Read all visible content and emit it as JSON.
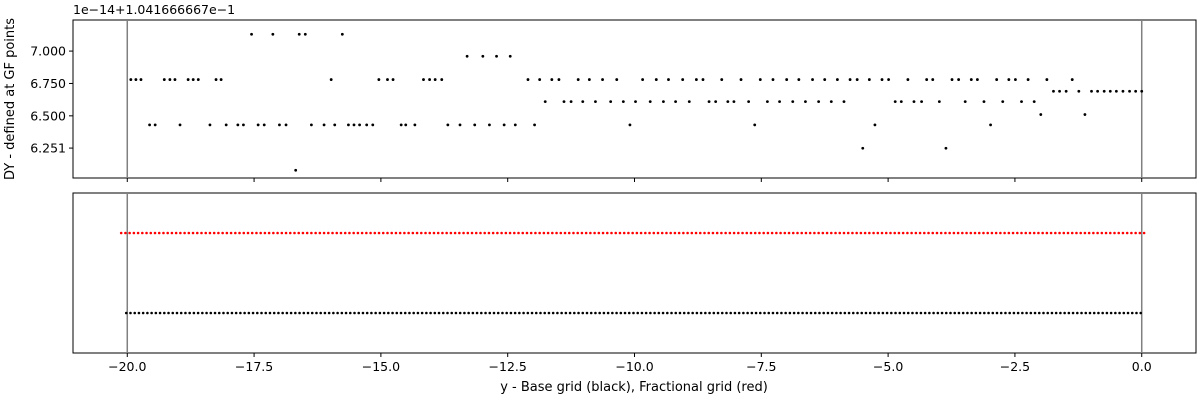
{
  "chart_data": [
    {
      "type": "scatter",
      "ylabel": "DY - defined at GF points",
      "offset_label": "1e−14+1.041666667e−1",
      "x_range": [
        -21.07,
        1.07
      ],
      "y_range": [
        6.02,
        7.24
      ],
      "y_ticks": [
        {
          "value": 7.0,
          "label": "7.000"
        },
        {
          "value": 6.75,
          "label": "6.750"
        },
        {
          "value": 6.5,
          "label": "6.500"
        },
        {
          "value": 6.251,
          "label": "6.251"
        }
      ],
      "vlines": [
        -20.0,
        0.0
      ],
      "line_color": "#808080",
      "point_color": "#000000",
      "series": [
        {
          "points": [
            [
              -19.93,
              6.78
            ],
            [
              -19.83,
              6.78
            ],
            [
              -19.73,
              6.78
            ],
            [
              -19.56,
              6.43
            ],
            [
              -19.45,
              6.43
            ],
            [
              -19.27,
              6.78
            ],
            [
              -19.16,
              6.78
            ],
            [
              -19.06,
              6.78
            ],
            [
              -18.96,
              6.43
            ],
            [
              -18.8,
              6.78
            ],
            [
              -18.7,
              6.78
            ],
            [
              -18.6,
              6.78
            ],
            [
              -18.37,
              6.43
            ],
            [
              -18.25,
              6.78
            ],
            [
              -18.15,
              6.78
            ],
            [
              -18.05,
              6.43
            ],
            [
              -17.82,
              6.43
            ],
            [
              -17.71,
              6.43
            ],
            [
              -17.55,
              7.13
            ],
            [
              -17.42,
              6.43
            ],
            [
              -17.3,
              6.43
            ],
            [
              -17.13,
              7.13
            ],
            [
              -17.0,
              6.43
            ],
            [
              -16.87,
              6.43
            ],
            [
              -16.68,
              6.08
            ],
            [
              -16.61,
              7.13
            ],
            [
              -16.49,
              7.13
            ],
            [
              -16.37,
              6.43
            ],
            [
              -16.12,
              6.43
            ],
            [
              -15.98,
              6.78
            ],
            [
              -15.91,
              6.43
            ],
            [
              -15.76,
              7.13
            ],
            [
              -15.64,
              6.43
            ],
            [
              -15.53,
              6.43
            ],
            [
              -15.42,
              6.43
            ],
            [
              -15.28,
              6.43
            ],
            [
              -15.16,
              6.43
            ],
            [
              -15.04,
              6.78
            ],
            [
              -14.87,
              6.78
            ],
            [
              -14.76,
              6.78
            ],
            [
              -14.6,
              6.43
            ],
            [
              -14.51,
              6.43
            ],
            [
              -14.33,
              6.43
            ],
            [
              -14.16,
              6.78
            ],
            [
              -14.04,
              6.78
            ],
            [
              -13.93,
              6.78
            ],
            [
              -13.8,
              6.78
            ],
            [
              -13.68,
              6.43
            ],
            [
              -13.44,
              6.43
            ],
            [
              -13.3,
              6.96
            ],
            [
              -13.15,
              6.43
            ],
            [
              -12.99,
              6.96
            ],
            [
              -12.86,
              6.43
            ],
            [
              -12.72,
              6.96
            ],
            [
              -12.57,
              6.43
            ],
            [
              -12.45,
              6.96
            ],
            [
              -12.35,
              6.43
            ],
            [
              -12.1,
              6.78
            ],
            [
              -11.97,
              6.43
            ],
            [
              -11.87,
              6.78
            ],
            [
              -11.76,
              6.61
            ],
            [
              -11.63,
              6.78
            ],
            [
              -11.49,
              6.78
            ],
            [
              -11.39,
              6.61
            ],
            [
              -11.25,
              6.61
            ],
            [
              -11.11,
              6.78
            ],
            [
              -11.02,
              6.61
            ],
            [
              -10.89,
              6.78
            ],
            [
              -10.77,
              6.61
            ],
            [
              -10.63,
              6.78
            ],
            [
              -10.47,
              6.61
            ],
            [
              -10.35,
              6.78
            ],
            [
              -10.22,
              6.61
            ],
            [
              -10.09,
              6.43
            ],
            [
              -9.98,
              6.61
            ],
            [
              -9.84,
              6.78
            ],
            [
              -9.69,
              6.61
            ],
            [
              -9.57,
              6.78
            ],
            [
              -9.43,
              6.61
            ],
            [
              -9.33,
              6.78
            ],
            [
              -9.19,
              6.61
            ],
            [
              -9.05,
              6.78
            ],
            [
              -8.92,
              6.61
            ],
            [
              -8.78,
              6.78
            ],
            [
              -8.65,
              6.78
            ],
            [
              -8.53,
              6.61
            ],
            [
              -8.4,
              6.61
            ],
            [
              -8.28,
              6.78
            ],
            [
              -8.16,
              6.61
            ],
            [
              -8.04,
              6.61
            ],
            [
              -7.9,
              6.78
            ],
            [
              -7.75,
              6.61
            ],
            [
              -7.63,
              6.43
            ],
            [
              -7.52,
              6.78
            ],
            [
              -7.38,
              6.61
            ],
            [
              -7.27,
              6.78
            ],
            [
              -7.14,
              6.61
            ],
            [
              -7.0,
              6.78
            ],
            [
              -6.88,
              6.61
            ],
            [
              -6.76,
              6.78
            ],
            [
              -6.63,
              6.61
            ],
            [
              -6.49,
              6.78
            ],
            [
              -6.37,
              6.61
            ],
            [
              -6.25,
              6.78
            ],
            [
              -6.12,
              6.61
            ],
            [
              -6.0,
              6.78
            ],
            [
              -5.87,
              6.61
            ],
            [
              -5.75,
              6.78
            ],
            [
              -5.61,
              6.78
            ],
            [
              -5.5,
              6.25
            ],
            [
              -5.37,
              6.78
            ],
            [
              -5.26,
              6.43
            ],
            [
              -5.12,
              6.78
            ],
            [
              -4.99,
              6.78
            ],
            [
              -4.86,
              6.61
            ],
            [
              -4.74,
              6.61
            ],
            [
              -4.61,
              6.78
            ],
            [
              -4.49,
              6.61
            ],
            [
              -4.34,
              6.61
            ],
            [
              -4.24,
              6.78
            ],
            [
              -4.12,
              6.78
            ],
            [
              -3.99,
              6.61
            ],
            [
              -3.86,
              6.25
            ],
            [
              -3.74,
              6.78
            ],
            [
              -3.61,
              6.78
            ],
            [
              -3.48,
              6.61
            ],
            [
              -3.36,
              6.78
            ],
            [
              -3.24,
              6.78
            ],
            [
              -3.11,
              6.61
            ],
            [
              -2.98,
              6.43
            ],
            [
              -2.86,
              6.78
            ],
            [
              -2.74,
              6.61
            ],
            [
              -2.62,
              6.78
            ],
            [
              -2.49,
              6.78
            ],
            [
              -2.37,
              6.61
            ],
            [
              -2.24,
              6.78
            ],
            [
              -2.12,
              6.61
            ],
            [
              -1.99,
              6.51
            ],
            [
              -1.87,
              6.78
            ],
            [
              -1.74,
              6.69
            ],
            [
              -1.62,
              6.69
            ],
            [
              -1.49,
              6.69
            ],
            [
              -1.37,
              6.78
            ],
            [
              -1.24,
              6.69
            ],
            [
              -1.12,
              6.51
            ],
            [
              -0.99,
              6.69
            ],
            [
              -0.87,
              6.69
            ],
            [
              -0.74,
              6.69
            ],
            [
              -0.62,
              6.69
            ],
            [
              -0.5,
              6.69
            ],
            [
              -0.37,
              6.69
            ],
            [
              -0.24,
              6.69
            ],
            [
              -0.12,
              6.69
            ],
            [
              0.0,
              6.69
            ]
          ]
        }
      ]
    },
    {
      "type": "scatter",
      "xlabel": "y - Base grid (black), Fractional grid (red)",
      "x_range": [
        -21.07,
        1.07
      ],
      "x_ticks": [
        {
          "value": -20.0,
          "label": "−20.0"
        },
        {
          "value": -17.5,
          "label": "−17.5"
        },
        {
          "value": -15.0,
          "label": "−15.0"
        },
        {
          "value": -12.5,
          "label": "−12.5"
        },
        {
          "value": -10.0,
          "label": "−10.0"
        },
        {
          "value": -7.5,
          "label": "−7.5"
        },
        {
          "value": -5.0,
          "label": "−5.0"
        },
        {
          "value": -2.5,
          "label": "−2.5"
        },
        {
          "value": 0.0,
          "label": "0.0"
        }
      ],
      "vlines": [
        -20.0,
        0.0
      ],
      "line_color": "#808080",
      "series": [
        {
          "color": "#000000",
          "x_start": -20.02,
          "x_end": 0.02,
          "step": 0.083333,
          "level": "base"
        },
        {
          "color": "#ff0000",
          "x_start": -20.12,
          "x_end": 0.12,
          "step": 0.083333,
          "level": "fractional"
        }
      ]
    }
  ]
}
